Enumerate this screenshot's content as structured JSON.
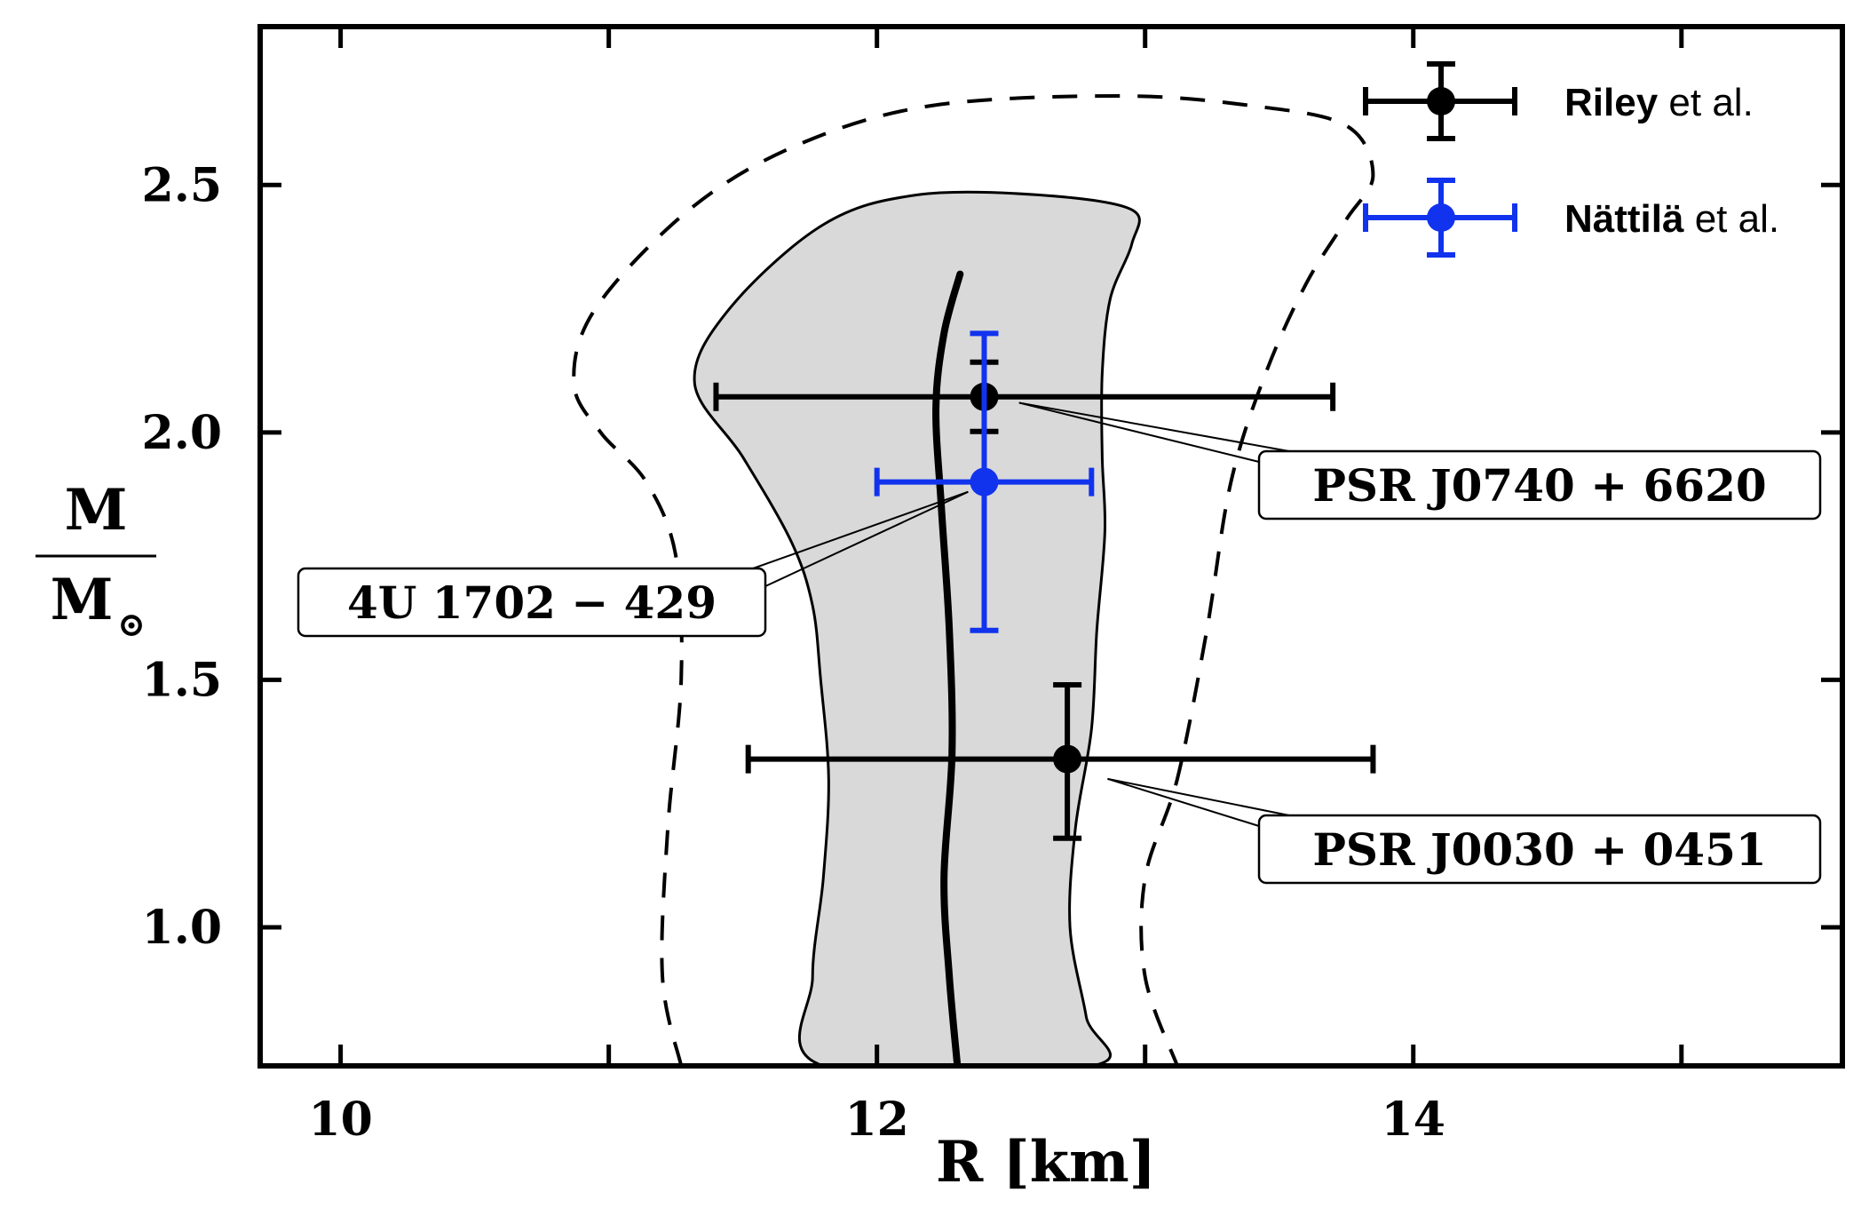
{
  "chart_data": {
    "type": "scatter",
    "xlabel": "R  [km]",
    "ylabel_num": "M",
    "ylabel_den": "M",
    "ylabel_den_sub": "⊙",
    "xlim": [
      9.7,
      15.6
    ],
    "ylim": [
      0.72,
      2.82
    ],
    "xticks": [
      10,
      12,
      14
    ],
    "xticks_minor": [
      11,
      13,
      15
    ],
    "yticks": [
      1.0,
      1.5,
      2.0,
      2.5
    ],
    "ytick_labels": [
      "1.0",
      "1.5",
      "2.0",
      "2.5"
    ],
    "grid": false,
    "legend_position": "top-right",
    "series": [
      {
        "name": "Riley",
        "label_suffix": " et al.",
        "color": "#000000",
        "points": [
          {
            "label": "PSR J0740 + 6620",
            "x": 12.4,
            "y": 2.072,
            "xerr_low": 1.0,
            "xerr_high": 1.3,
            "yerr_low": 0.07,
            "yerr_high": 0.07
          },
          {
            "label": "PSR J0030 + 0451",
            "x": 12.71,
            "y": 1.34,
            "xerr_low": 1.19,
            "xerr_high": 1.14,
            "yerr_low": 0.16,
            "yerr_high": 0.15
          }
        ]
      },
      {
        "name": "Nättilä",
        "label_suffix": " et al.",
        "color": "#1133ee",
        "points": [
          {
            "label": "4U 1702 − 429",
            "x": 12.4,
            "y": 1.9,
            "xerr_low": 0.4,
            "xerr_high": 0.4,
            "yerr_low": 0.3,
            "yerr_high": 0.3
          }
        ]
      }
    ],
    "bands": [
      {
        "kind": "filled",
        "fill": "#d9d9d9",
        "outline": [
          [
            11.8,
            0.72
          ],
          [
            11.76,
            0.9
          ],
          [
            11.8,
            1.1
          ],
          [
            11.82,
            1.3
          ],
          [
            11.79,
            1.5
          ],
          [
            11.76,
            1.65
          ],
          [
            11.68,
            1.78
          ],
          [
            11.5,
            1.95
          ],
          [
            11.32,
            2.1
          ],
          [
            11.45,
            2.25
          ],
          [
            11.8,
            2.42
          ],
          [
            12.15,
            2.48
          ],
          [
            12.6,
            2.48
          ],
          [
            12.95,
            2.45
          ],
          [
            12.95,
            2.38
          ],
          [
            12.87,
            2.27
          ],
          [
            12.84,
            2.12
          ],
          [
            12.84,
            1.95
          ],
          [
            12.85,
            1.8
          ],
          [
            12.82,
            1.6
          ],
          [
            12.8,
            1.4
          ],
          [
            12.74,
            1.2
          ],
          [
            12.72,
            1.0
          ],
          [
            12.78,
            0.82
          ],
          [
            12.8,
            0.72
          ]
        ]
      },
      {
        "kind": "dashed",
        "outline": [
          [
            11.27,
            0.72
          ],
          [
            11.2,
            0.9
          ],
          [
            11.22,
            1.2
          ],
          [
            11.27,
            1.5
          ],
          [
            11.25,
            1.75
          ],
          [
            11.14,
            1.9
          ],
          [
            10.97,
            2.0
          ],
          [
            10.87,
            2.1
          ],
          [
            10.95,
            2.25
          ],
          [
            11.3,
            2.45
          ],
          [
            11.7,
            2.58
          ],
          [
            12.2,
            2.66
          ],
          [
            12.9,
            2.68
          ],
          [
            13.4,
            2.66
          ],
          [
            13.75,
            2.62
          ],
          [
            13.85,
            2.52
          ],
          [
            13.75,
            2.43
          ],
          [
            13.6,
            2.3
          ],
          [
            13.45,
            2.12
          ],
          [
            13.32,
            1.9
          ],
          [
            13.23,
            1.6
          ],
          [
            13.12,
            1.3
          ],
          [
            13.0,
            1.1
          ],
          [
            13.0,
            0.9
          ],
          [
            13.12,
            0.72
          ]
        ]
      }
    ],
    "central_curve": [
      [
        12.3,
        0.72
      ],
      [
        12.27,
        0.9
      ],
      [
        12.25,
        1.1
      ],
      [
        12.28,
        1.35
      ],
      [
        12.27,
        1.6
      ],
      [
        12.24,
        1.85
      ],
      [
        12.22,
        2.05
      ],
      [
        12.25,
        2.2
      ],
      [
        12.31,
        2.32
      ]
    ],
    "annotations": [
      {
        "text": "PSR J0740 + 6620",
        "target": [
          12.53,
          2.06
        ],
        "box_anchor": "right-upper"
      },
      {
        "text": "4U 1702 − 429",
        "target": [
          12.34,
          1.88
        ],
        "box_anchor": "left-middle"
      },
      {
        "text": "PSR J0030 + 0451",
        "target": [
          12.86,
          1.3
        ],
        "box_anchor": "right-lower"
      }
    ]
  }
}
